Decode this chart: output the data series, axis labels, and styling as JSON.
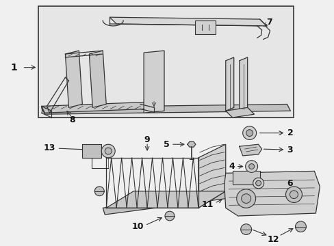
{
  "bg_color": "#f0f0f0",
  "box_bg": "#e8e8e8",
  "line_color": "#333333",
  "lw": 0.9,
  "fig_width": 4.89,
  "fig_height": 3.6,
  "dpi": 100
}
